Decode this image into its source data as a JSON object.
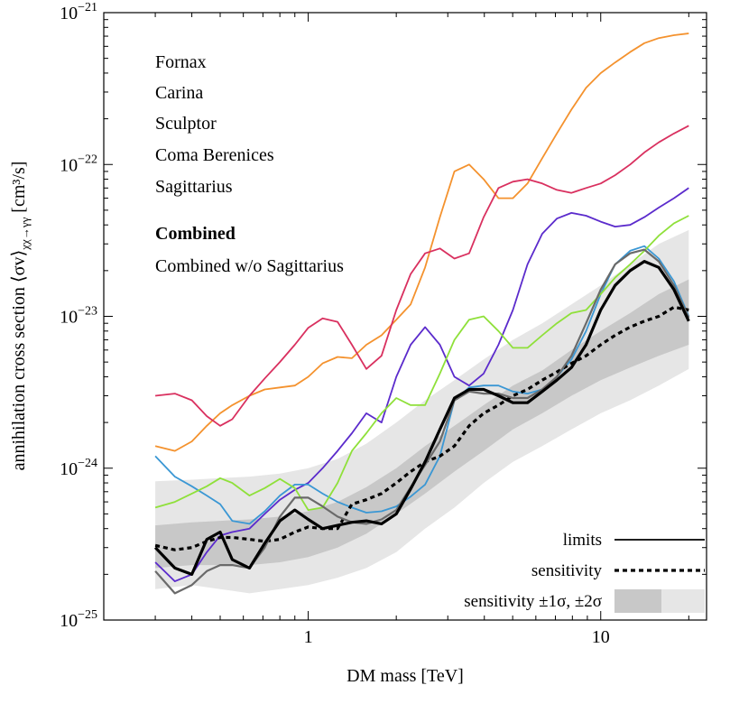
{
  "chart_data": {
    "type": "line",
    "xlabel": "DM mass [TeV]",
    "ylabel": "annihilation cross section ⟨σv⟩",
    "ylabel_sub": "χχ→γγ",
    "ylabel_unit": " [cm³/s]",
    "xscale": "log",
    "yscale": "log",
    "xlim": [
      0.2,
      23
    ],
    "ylim": [
      1e-25,
      1e-21
    ],
    "x_ticks": [
      {
        "value": 1,
        "label": "1"
      },
      {
        "value": 10,
        "label": "10"
      }
    ],
    "y_ticks": [
      {
        "value": 1e-25,
        "base": "10",
        "exp": "−25"
      },
      {
        "value": 1e-24,
        "base": "10",
        "exp": "−24"
      },
      {
        "value": 1e-23,
        "base": "10",
        "exp": "−23"
      },
      {
        "value": 1e-22,
        "base": "10",
        "exp": "−22"
      },
      {
        "value": 1e-21,
        "base": "10",
        "exp": "−21"
      }
    ],
    "x": [
      0.3,
      0.35,
      0.4,
      0.45,
      0.5,
      0.55,
      0.63,
      0.71,
      0.8,
      0.9,
      1.0,
      1.12,
      1.26,
      1.41,
      1.58,
      1.78,
      2.0,
      2.24,
      2.51,
      2.82,
      3.16,
      3.55,
      3.98,
      4.47,
      5.01,
      5.62,
      6.31,
      7.08,
      7.94,
      8.91,
      10.0,
      11.2,
      12.6,
      14.1,
      15.8,
      17.8,
      20.0
    ],
    "series": [
      {
        "name": "Fornax",
        "color": "#f4922e",
        "width": 1.8,
        "dash": "",
        "values": [
          1.4e-24,
          1.3e-24,
          1.5e-24,
          1.9e-24,
          2.3e-24,
          2.6e-24,
          3e-24,
          3.3e-24,
          3.4e-24,
          3.5e-24,
          4e-24,
          4.9e-24,
          5.4e-24,
          5.3e-24,
          6.5e-24,
          7.5e-24,
          9.5e-24,
          1.2e-23,
          2.1e-23,
          4.5e-23,
          9e-23,
          1e-22,
          8e-23,
          6e-23,
          6e-23,
          7.5e-23,
          1.1e-22,
          1.6e-22,
          2.3e-22,
          3.2e-22,
          4e-22,
          4.7e-22,
          5.5e-22,
          6.3e-22,
          6.8e-22,
          7.1e-22,
          7.3e-22
        ]
      },
      {
        "name": "Carina",
        "color": "#d9305f",
        "width": 1.8,
        "dash": "",
        "values": [
          3e-24,
          3.1e-24,
          2.8e-24,
          2.2e-24,
          1.9e-24,
          2.1e-24,
          3e-24,
          3.9e-24,
          5e-24,
          6.5e-24,
          8.4e-24,
          9.7e-24,
          9.2e-24,
          6.5e-24,
          4.5e-24,
          5.5e-24,
          1.1e-23,
          1.9e-23,
          2.6e-23,
          2.8e-23,
          2.4e-23,
          2.6e-23,
          4.5e-23,
          7e-23,
          7.7e-23,
          8e-23,
          7.5e-23,
          6.8e-23,
          6.5e-23,
          7e-23,
          7.5e-23,
          8.5e-23,
          1e-22,
          1.2e-22,
          1.4e-22,
          1.6e-22,
          1.8e-22
        ]
      },
      {
        "name": "Sculptor",
        "color": "#5b2bcc",
        "width": 1.8,
        "dash": "",
        "values": [
          2.4e-25,
          1.8e-25,
          2e-25,
          2.8e-25,
          3.6e-25,
          3.8e-25,
          4e-25,
          5e-25,
          6.2e-25,
          7.2e-25,
          8e-25,
          1e-24,
          1.3e-24,
          1.7e-24,
          2.3e-24,
          2e-24,
          4e-24,
          6.5e-24,
          8.5e-24,
          6.5e-24,
          4e-24,
          3.5e-24,
          4.2e-24,
          6.5e-24,
          1.1e-23,
          2.2e-23,
          3.5e-23,
          4.4e-23,
          4.8e-23,
          4.6e-23,
          4.2e-23,
          3.9e-23,
          4e-23,
          4.5e-23,
          5.2e-23,
          6e-23,
          7e-23
        ]
      },
      {
        "name": "Coma Berenices",
        "color": "#3a97d4",
        "width": 1.8,
        "dash": "",
        "values": [
          1.2e-24,
          8.8e-25,
          7.6e-25,
          6.6e-25,
          5.8e-25,
          4.5e-25,
          4.3e-25,
          5.2e-25,
          6.6e-25,
          7.8e-25,
          7.8e-25,
          6.8e-25,
          6e-25,
          5.5e-25,
          5.1e-25,
          5.2e-25,
          5.6e-25,
          6.5e-25,
          7.8e-25,
          1.2e-24,
          2.8e-24,
          3.4e-24,
          3.5e-24,
          3.5e-24,
          3.2e-24,
          3.1e-24,
          3.3e-24,
          4e-24,
          5.2e-24,
          8e-24,
          1.4e-23,
          2.2e-23,
          2.7e-23,
          2.9e-23,
          2.4e-23,
          1.7e-23,
          1e-23
        ]
      },
      {
        "name": "Sagittarius",
        "color": "#8fe03a",
        "width": 1.8,
        "dash": "",
        "values": [
          5.5e-25,
          6e-25,
          6.8e-25,
          7.6e-25,
          8.6e-25,
          8e-25,
          6.6e-25,
          7.4e-25,
          8.5e-25,
          7.4e-25,
          5.3e-25,
          5.5e-25,
          8e-25,
          1.3e-24,
          1.7e-24,
          2.3e-24,
          2.9e-24,
          2.6e-24,
          2.6e-24,
          4.2e-24,
          7e-24,
          9.5e-24,
          1e-23,
          8e-24,
          6.2e-24,
          6.2e-24,
          7.5e-24,
          9e-24,
          1.05e-23,
          1.1e-23,
          1.4e-23,
          1.8e-23,
          2.2e-23,
          2.7e-23,
          3.4e-23,
          4.1e-23,
          4.6e-23
        ]
      },
      {
        "name": "Combined w/o Sagittarius",
        "color": "#6a6a6a",
        "width": 2.2,
        "dash": "",
        "values": [
          2.1e-25,
          1.5e-25,
          1.7e-25,
          2.1e-25,
          2.3e-25,
          2.3e-25,
          2.2e-25,
          3e-25,
          4.8e-25,
          6.4e-25,
          6.4e-25,
          5.6e-25,
          4.8e-25,
          4.4e-25,
          4.3e-25,
          4.6e-25,
          5.3e-25,
          7.5e-25,
          1.05e-24,
          1.5e-24,
          2.8e-24,
          3.2e-24,
          3.1e-24,
          3.1e-24,
          2.9e-24,
          2.9e-24,
          3.3e-24,
          4e-24,
          5.5e-24,
          9e-24,
          1.5e-23,
          2.2e-23,
          2.6e-23,
          2.75e-23,
          2.3e-23,
          1.6e-23,
          9.8e-24
        ]
      },
      {
        "name": "Combined",
        "color": "#000000",
        "width": 3.2,
        "dash": "",
        "values": [
          3e-25,
          2.2e-25,
          2e-25,
          3.4e-25,
          3.8e-25,
          2.5e-25,
          2.2e-25,
          3.2e-25,
          4.5e-25,
          5.3e-25,
          4.6e-25,
          4e-25,
          4.2e-25,
          4.4e-25,
          4.5e-25,
          4.3e-25,
          5e-25,
          7.3e-25,
          1.1e-24,
          1.8e-24,
          2.9e-24,
          3.3e-24,
          3.3e-24,
          3e-24,
          2.7e-24,
          2.7e-24,
          3.2e-24,
          3.8e-24,
          4.6e-24,
          6.5e-24,
          1.1e-23,
          1.6e-23,
          2e-23,
          2.3e-23,
          2.1e-23,
          1.5e-23,
          9.3e-24
        ]
      },
      {
        "name": "sensitivity",
        "color": "#000000",
        "width": 3.2,
        "dash": "5,4",
        "values": [
          3.1e-25,
          2.9e-25,
          3e-25,
          3.3e-25,
          3.5e-25,
          3.5e-25,
          3.4e-25,
          3.3e-25,
          3.4e-25,
          3.8e-25,
          4.1e-25,
          4e-25,
          4e-25,
          5.8e-25,
          6.2e-25,
          6.8e-25,
          8e-25,
          9.5e-25,
          1.1e-24,
          1.2e-24,
          1.4e-24,
          1.9e-24,
          2.3e-24,
          2.6e-24,
          3e-24,
          3.3e-24,
          3.8e-24,
          4.3e-24,
          4.9e-24,
          5.5e-24,
          6.5e-24,
          7.5e-24,
          8.5e-24,
          9.3e-24,
          1e-23,
          1.15e-23,
          1.1e-23
        ]
      }
    ],
    "bands": {
      "x": [
        0.3,
        0.4,
        0.5,
        0.63,
        0.8,
        1.0,
        1.26,
        1.58,
        2.0,
        2.51,
        3.16,
        3.98,
        5.01,
        6.31,
        7.94,
        10.0,
        12.6,
        15.8,
        20.0
      ],
      "two_sigma_low": [
        1.6e-25,
        1.7e-25,
        1.6e-25,
        1.5e-25,
        1.6e-25,
        1.7e-25,
        1.9e-25,
        2.2e-25,
        2.8e-25,
        4e-25,
        5.5e-25,
        8e-25,
        1.1e-24,
        1.4e-24,
        1.8e-24,
        2.3e-24,
        2.8e-24,
        3.5e-24,
        4.5e-24
      ],
      "one_sigma_low": [
        2.2e-25,
        2.3e-25,
        2.3e-25,
        2.3e-25,
        2.4e-25,
        2.6e-25,
        3e-25,
        3.7e-25,
        5e-25,
        6.8e-25,
        9.5e-25,
        1.3e-24,
        1.8e-24,
        2.3e-24,
        3e-24,
        3.8e-24,
        4.6e-24,
        5.5e-24,
        6.5e-24
      ],
      "one_sigma_high": [
        4.2e-25,
        4.4e-25,
        4.5e-25,
        4.6e-25,
        4.8e-25,
        5.2e-25,
        6e-25,
        7.5e-25,
        1e-24,
        1.4e-24,
        1.9e-24,
        2.6e-24,
        3.5e-24,
        4.4e-24,
        6e-24,
        8e-24,
        1.05e-23,
        1.4e-23,
        1.75e-23
      ],
      "two_sigma_high": [
        8.2e-25,
        8.4e-25,
        8.6e-25,
        8.8e-25,
        9.2e-25,
        1e-24,
        1.15e-24,
        1.45e-24,
        2e-24,
        2.8e-24,
        3.8e-24,
        5.2e-24,
        7e-24,
        9e-24,
        1.2e-23,
        1.6e-23,
        2.2e-23,
        3e-23,
        3.7e-23
      ],
      "one_sigma_color": "#c8c8c8",
      "two_sigma_color": "#e6e6e6"
    },
    "legend_top": {
      "placement": "top-left",
      "entries": [
        {
          "label": "Fornax",
          "color": "#f4922e",
          "bold": false
        },
        {
          "label": "Carina",
          "color": "#d9305f",
          "bold": false
        },
        {
          "label": "Sculptor",
          "color": "#5b2bcc",
          "bold": false
        },
        {
          "label": "Coma Berenices",
          "color": "#3a97d4",
          "bold": false
        },
        {
          "label": "Sagittarius",
          "color": "#8fe03a",
          "bold": false
        },
        {
          "label": "Combined",
          "color": "#000000",
          "bold": true
        },
        {
          "label": "Combined w/o Sagittarius",
          "color": "#6a6a6a",
          "bold": false
        }
      ]
    },
    "legend_bottom": {
      "placement": "bottom-right",
      "entries": [
        {
          "label": "limits",
          "kind": "solid"
        },
        {
          "label": "sensitivity",
          "kind": "dashed"
        },
        {
          "label": "sensitivity ±1σ, ±2σ",
          "kind": "band"
        }
      ]
    }
  }
}
